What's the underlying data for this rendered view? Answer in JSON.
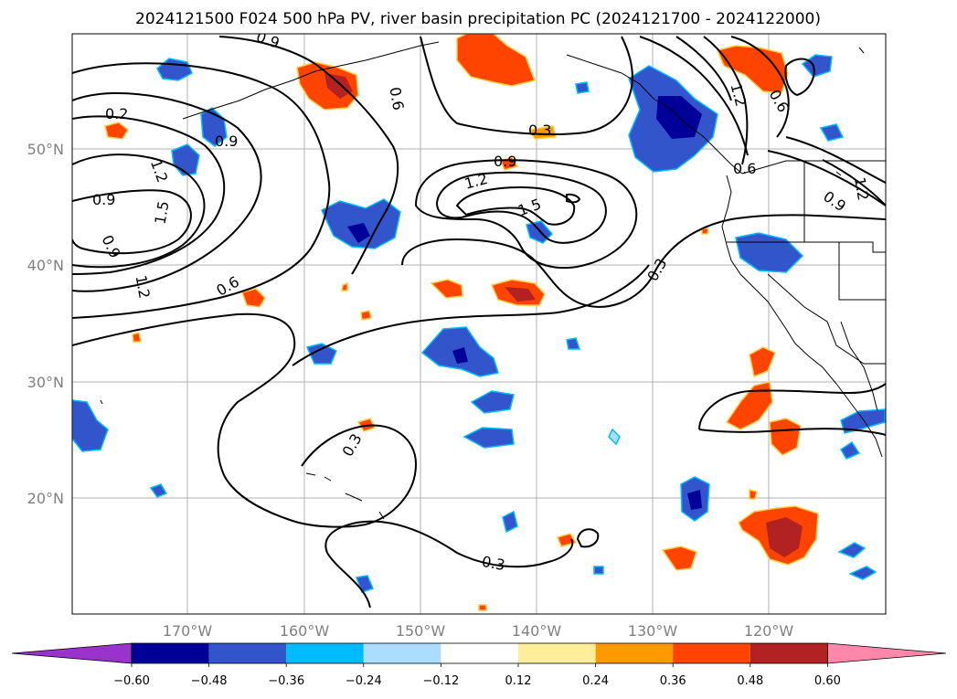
{
  "title": "2024121500 F024 500 hPa PV, river basin precipitation PC (2024121700 - 2024122000)",
  "lat_labels": [
    "50°N",
    "40°N",
    "30°N",
    "20°N"
  ],
  "lon_labels": [
    "170°W",
    "160°W",
    "150°W",
    "140°W",
    "130°W",
    "120°W"
  ],
  "colorbar": {
    "ticks": [
      "−0.60",
      "−0.48",
      "−0.36",
      "−0.24",
      "−0.12",
      "0.12",
      "0.24",
      "0.36",
      "0.48",
      "0.60"
    ],
    "colors": [
      "#9933cc",
      "#000099",
      "#3355cc",
      "#00bbff",
      "#aaddff",
      "#ffffff",
      "#ffee99",
      "#ff9900",
      "#ff4400",
      "#b22222",
      "#ff88aa"
    ]
  },
  "contour_labels": [
    "0.9",
    "1.2",
    "0.6",
    "0.9",
    "1.2",
    "1.5",
    "0.9",
    "0.9",
    "1.2",
    "0.6",
    "0.3",
    "1.2",
    "0.9",
    "1.5",
    "0.3",
    "0.2",
    "0.6",
    "0.6",
    "1.2",
    "0.9",
    "0.3",
    "0.3"
  ]
}
